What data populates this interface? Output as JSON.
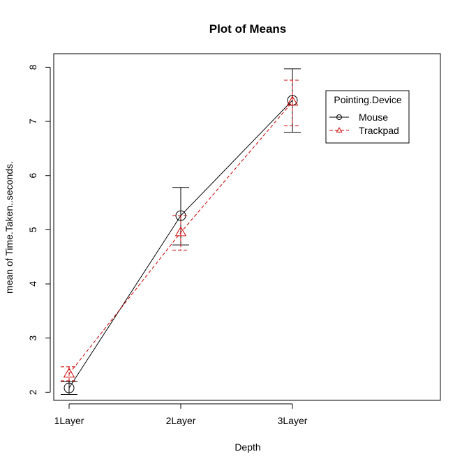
{
  "chart_data": {
    "type": "line",
    "title": "Plot of Means",
    "xlabel": "Depth",
    "ylabel": "mean of Time.Taken..seconds.",
    "categories": [
      "1Layer",
      "2Layer",
      "3Layer"
    ],
    "ylim": [
      1.85,
      8.25
    ],
    "yticks": [
      2,
      3,
      4,
      5,
      6,
      7,
      8
    ],
    "grid": false,
    "legend": {
      "title": "Pointing.Device",
      "placement": "top-right"
    },
    "series": [
      {
        "name": "Mouse",
        "color": "#000000",
        "marker": "circle",
        "line": "solid",
        "values": [
          2.08,
          5.26,
          7.39
        ],
        "err_low": [
          1.96,
          4.72,
          6.8
        ],
        "err_high": [
          2.2,
          5.78,
          7.97
        ]
      },
      {
        "name": "Trackpad",
        "color": "#cc0000",
        "marker": "triangle",
        "line": "dashed",
        "values": [
          2.34,
          4.95,
          7.36
        ],
        "err_low": [
          2.21,
          4.62,
          6.92
        ],
        "err_high": [
          2.47,
          5.26,
          7.76
        ]
      }
    ]
  }
}
